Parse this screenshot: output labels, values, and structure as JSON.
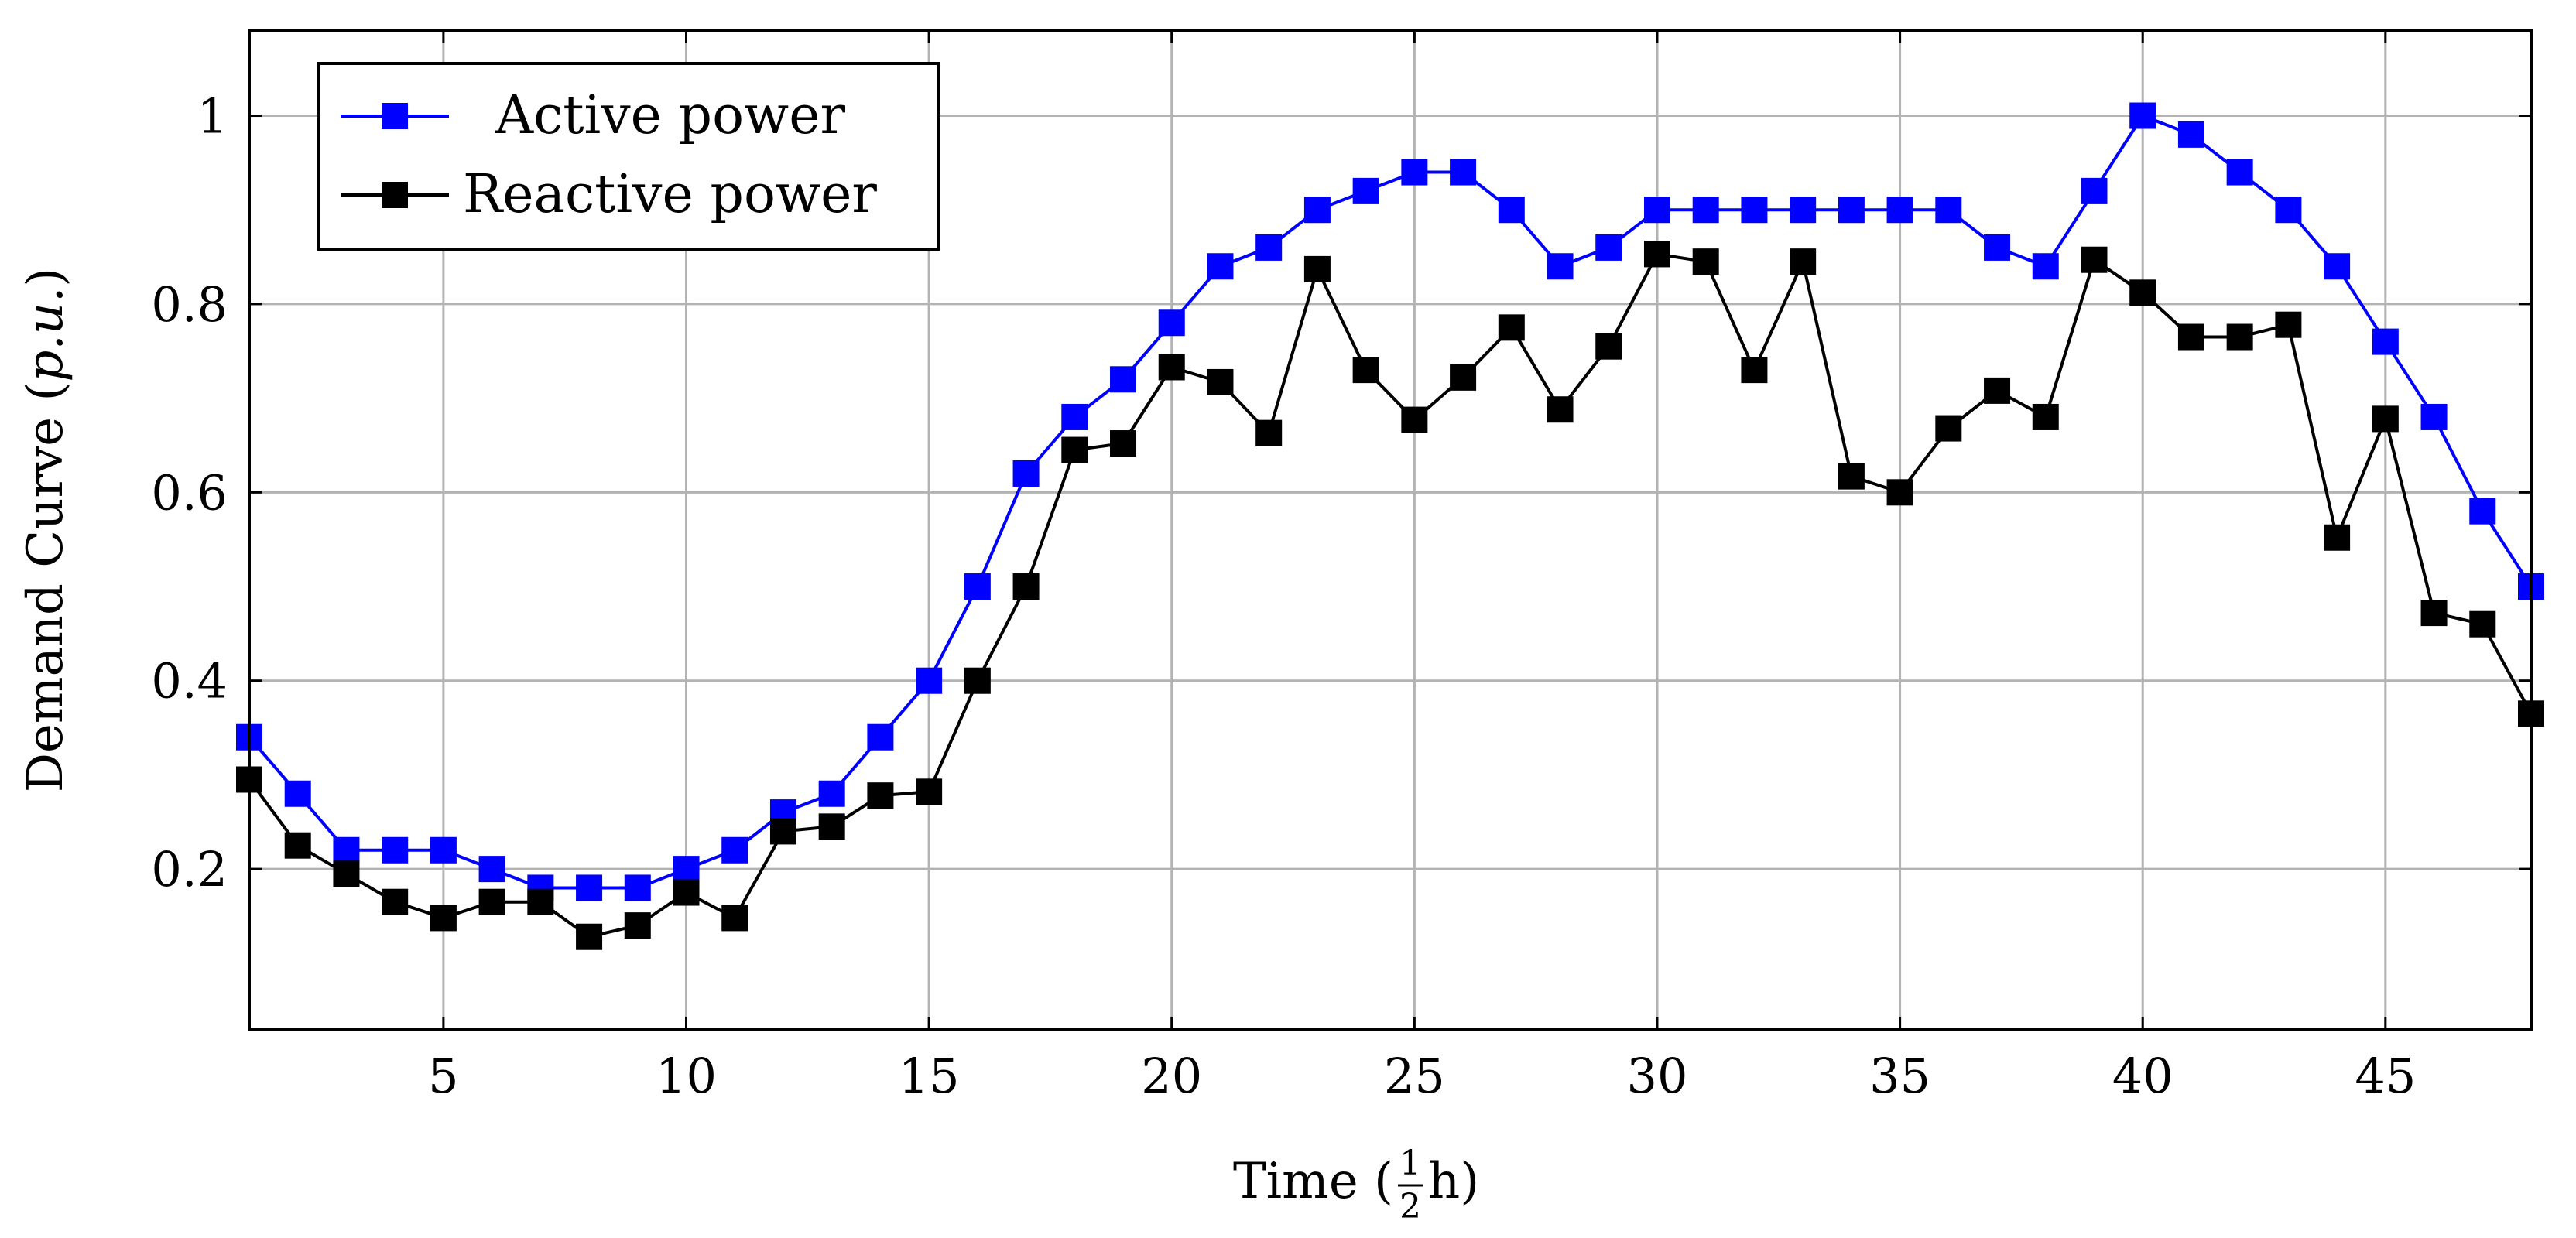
{
  "chart_data": {
    "type": "line",
    "title": "",
    "xlabel": "Time (½ h)",
    "xlabel_prefix": "Time (",
    "xlabel_fraction_num": "1",
    "xlabel_fraction_den": "2",
    "xlabel_suffix": " h)",
    "ylabel": "Demand Curve (p.u.)",
    "ylabel_prefix": "Demand Curve (",
    "ylabel_italic": "p.u.",
    "ylabel_suffix": ")",
    "xlim": [
      1,
      48
    ],
    "ylim": [
      0.03,
      1.09
    ],
    "grid": true,
    "legend_position": "top-left",
    "x_ticks": [
      "5",
      "10",
      "15",
      "20",
      "25",
      "30",
      "35",
      "40",
      "45"
    ],
    "y_ticks": [
      "0.2",
      "0.4",
      "0.6",
      "0.8",
      "1"
    ],
    "x": [
      1,
      2,
      3,
      4,
      5,
      6,
      7,
      8,
      9,
      10,
      11,
      12,
      13,
      14,
      15,
      16,
      17,
      18,
      19,
      20,
      21,
      22,
      23,
      24,
      25,
      26,
      27,
      28,
      29,
      30,
      31,
      32,
      33,
      34,
      35,
      36,
      37,
      38,
      39,
      40,
      41,
      42,
      43,
      44,
      45,
      46,
      47,
      48
    ],
    "series": [
      {
        "name": "Active power",
        "color": "#0000ff",
        "marker": "square",
        "values": [
          0.34,
          0.28,
          0.22,
          0.22,
          0.22,
          0.2,
          0.18,
          0.18,
          0.18,
          0.2,
          0.22,
          0.26,
          0.28,
          0.34,
          0.4,
          0.5,
          0.62,
          0.68,
          0.72,
          0.78,
          0.84,
          0.86,
          0.9,
          0.92,
          0.94,
          0.94,
          0.9,
          0.84,
          0.86,
          0.9,
          0.9,
          0.9,
          0.9,
          0.9,
          0.9,
          0.9,
          0.86,
          0.84,
          0.92,
          1.0,
          0.98,
          0.94,
          0.9,
          0.84,
          0.76,
          0.68,
          0.58,
          0.5
        ]
      },
      {
        "name": "Reactive power",
        "color": "#000000",
        "marker": "square",
        "values": [
          0.295,
          0.225,
          0.195,
          0.165,
          0.148,
          0.165,
          0.165,
          0.128,
          0.14,
          0.175,
          0.148,
          0.24,
          0.245,
          0.278,
          0.282,
          0.4,
          0.5,
          0.645,
          0.652,
          0.733,
          0.717,
          0.663,
          0.837,
          0.73,
          0.677,
          0.722,
          0.775,
          0.688,
          0.755,
          0.853,
          0.845,
          0.73,
          0.845,
          0.617,
          0.6,
          0.668,
          0.708,
          0.68,
          0.847,
          0.812,
          0.765,
          0.765,
          0.778,
          0.552,
          0.678,
          0.472,
          0.46,
          0.365
        ]
      }
    ]
  }
}
